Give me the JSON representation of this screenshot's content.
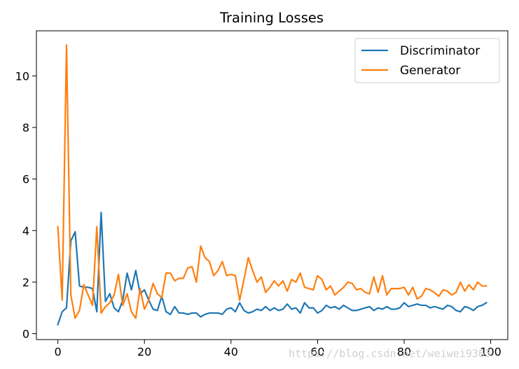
{
  "chart_data": {
    "type": "line",
    "title": "Training Losses",
    "xlabel": "",
    "ylabel": "",
    "xlim": [
      -4.95,
      103.95
    ],
    "ylim": [
      -0.23,
      11.75
    ],
    "xticks": [
      0,
      20,
      40,
      60,
      80,
      100
    ],
    "yticks": [
      0,
      2,
      4,
      6,
      8,
      10
    ],
    "grid": false,
    "legend_position": "top-right",
    "series": [
      {
        "name": "Discriminator",
        "color": "#1f77b4",
        "x": [
          0,
          1,
          2,
          3,
          4,
          5,
          6,
          7,
          8,
          9,
          10,
          11,
          12,
          13,
          14,
          15,
          16,
          17,
          18,
          19,
          20,
          21,
          22,
          23,
          24,
          25,
          26,
          27,
          28,
          29,
          30,
          31,
          32,
          33,
          34,
          35,
          36,
          37,
          38,
          39,
          40,
          41,
          42,
          43,
          44,
          45,
          46,
          47,
          48,
          49,
          50,
          51,
          52,
          53,
          54,
          55,
          56,
          57,
          58,
          59,
          60,
          61,
          62,
          63,
          64,
          65,
          66,
          67,
          68,
          69,
          70,
          71,
          72,
          73,
          74,
          75,
          76,
          77,
          78,
          79,
          80,
          81,
          82,
          83,
          84,
          85,
          86,
          87,
          88,
          89,
          90,
          91,
          92,
          93,
          94,
          95,
          96,
          97,
          98,
          99
        ],
        "values": [
          0.35,
          0.85,
          1.0,
          3.6,
          3.95,
          1.85,
          1.8,
          1.8,
          1.75,
          0.85,
          4.7,
          1.25,
          1.55,
          1.0,
          0.85,
          1.3,
          2.35,
          1.7,
          2.45,
          1.55,
          1.7,
          1.3,
          0.95,
          0.9,
          1.45,
          0.85,
          0.75,
          1.05,
          0.8,
          0.8,
          0.75,
          0.8,
          0.8,
          0.65,
          0.75,
          0.8,
          0.8,
          0.8,
          0.75,
          0.95,
          1.0,
          0.85,
          1.2,
          0.9,
          0.8,
          0.85,
          0.95,
          0.9,
          1.05,
          0.9,
          1.0,
          0.9,
          0.95,
          1.15,
          0.95,
          1.0,
          0.8,
          1.2,
          1.0,
          1.0,
          0.8,
          0.9,
          1.1,
          1.0,
          1.05,
          0.95,
          1.1,
          1.0,
          0.9,
          0.9,
          0.95,
          1.0,
          1.05,
          0.9,
          1.0,
          0.95,
          1.05,
          0.95,
          0.95,
          1.0,
          1.2,
          1.05,
          1.1,
          1.15,
          1.1,
          1.1,
          1.0,
          1.05,
          1.0,
          0.95,
          1.1,
          1.05,
          0.9,
          0.85,
          1.05,
          1.0,
          0.9,
          1.05,
          1.1,
          1.2
        ]
      },
      {
        "name": "Generator",
        "color": "#ff7f0e",
        "x": [
          0,
          1,
          2,
          3,
          4,
          5,
          6,
          7,
          8,
          9,
          10,
          11,
          12,
          13,
          14,
          15,
          16,
          17,
          18,
          19,
          20,
          21,
          22,
          23,
          24,
          25,
          26,
          27,
          28,
          29,
          30,
          31,
          32,
          33,
          34,
          35,
          36,
          37,
          38,
          39,
          40,
          41,
          42,
          43,
          44,
          45,
          46,
          47,
          48,
          49,
          50,
          51,
          52,
          53,
          54,
          55,
          56,
          57,
          58,
          59,
          60,
          61,
          62,
          63,
          64,
          65,
          66,
          67,
          68,
          69,
          70,
          71,
          72,
          73,
          74,
          75,
          76,
          77,
          78,
          79,
          80,
          81,
          82,
          83,
          84,
          85,
          86,
          87,
          88,
          89,
          90,
          91,
          92,
          93,
          94,
          95,
          96,
          97,
          98,
          99
        ],
        "values": [
          4.15,
          1.3,
          11.2,
          1.5,
          0.6,
          0.9,
          1.9,
          1.5,
          1.1,
          4.15,
          0.8,
          1.05,
          1.2,
          1.5,
          2.3,
          1.1,
          1.55,
          0.85,
          0.6,
          1.75,
          0.95,
          1.3,
          1.95,
          1.55,
          1.4,
          2.35,
          2.35,
          2.05,
          2.15,
          2.15,
          2.55,
          2.6,
          2.0,
          3.4,
          2.95,
          2.8,
          2.25,
          2.45,
          2.8,
          2.25,
          2.3,
          2.25,
          1.3,
          2.1,
          2.95,
          2.45,
          2.0,
          2.2,
          1.6,
          1.8,
          2.05,
          1.85,
          2.05,
          1.65,
          2.1,
          2.0,
          2.35,
          1.8,
          1.75,
          1.7,
          2.25,
          2.1,
          1.7,
          1.85,
          1.5,
          1.65,
          1.8,
          2.0,
          1.95,
          1.7,
          1.75,
          1.6,
          1.55,
          2.2,
          1.6,
          2.25,
          1.5,
          1.75,
          1.75,
          1.75,
          1.8,
          1.5,
          1.8,
          1.35,
          1.45,
          1.75,
          1.7,
          1.6,
          1.45,
          1.7,
          1.65,
          1.5,
          1.6,
          2.0,
          1.65,
          1.9,
          1.7,
          2.0,
          1.85,
          1.85
        ]
      }
    ]
  },
  "watermark": "https://blog.csdn.net/weiwei9363"
}
